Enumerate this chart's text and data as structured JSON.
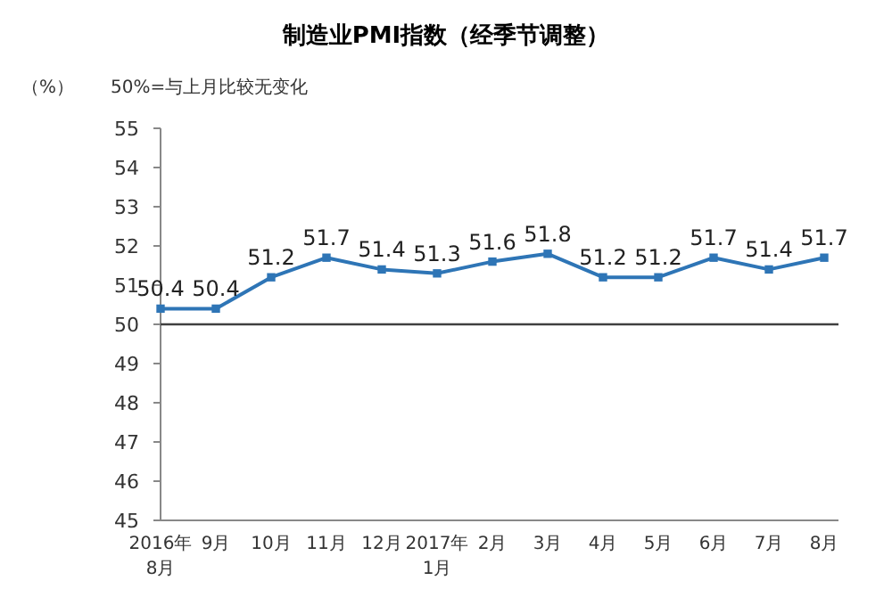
{
  "chart_data": {
    "type": "line",
    "title": "制造业PMI指数（经季节调整）",
    "ylabel": "（%）",
    "annotations": [
      "50%=与上月比较无变化"
    ],
    "categories": [
      "2016年\n8月",
      "9月",
      "10月",
      "11月",
      "12月",
      "2017年\n1月",
      "2月",
      "3月",
      "4月",
      "5月",
      "6月",
      "7月",
      "8月"
    ],
    "series": [
      {
        "color": "#2e75b6",
        "values": [
          50.4,
          50.4,
          51.2,
          51.7,
          51.4,
          51.3,
          51.6,
          51.8,
          51.2,
          51.2,
          51.7,
          51.4,
          51.7
        ]
      }
    ],
    "ylim": [
      45,
      55
    ],
    "yticks": [
      45,
      46,
      47,
      48,
      49,
      50,
      51,
      52,
      53,
      54,
      55
    ],
    "grid": false,
    "marker": "square",
    "line_style": "solid",
    "data_labels": true,
    "ref_lines": [
      {
        "axis": "y",
        "value": 50,
        "color": "#404040"
      }
    ]
  }
}
